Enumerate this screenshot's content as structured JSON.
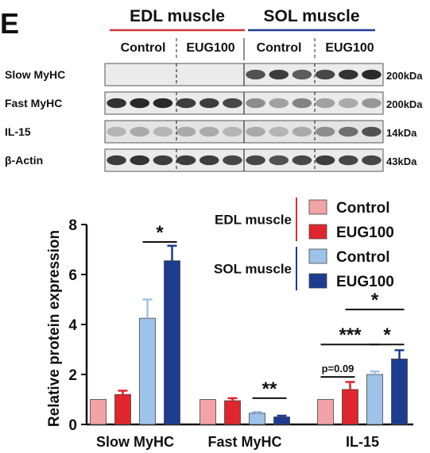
{
  "panel_label": "E",
  "blot": {
    "groups": [
      {
        "name": "EDL muscle",
        "color": "#d0343a"
      },
      {
        "name": "SOL muscle",
        "color": "#1f3a93"
      }
    ],
    "subgroups": [
      "Control",
      "EUG100",
      "Control",
      "EUG100"
    ],
    "rows": [
      {
        "protein": "Slow MyHC",
        "size": "200kDa"
      },
      {
        "protein": "Fast MyHC",
        "size": "200kDa"
      },
      {
        "protein": "IL-15",
        "size": "14kDa"
      },
      {
        "protein": "β-Actin",
        "size": "43kDa"
      }
    ]
  },
  "legend": {
    "groups": [
      {
        "label": "EDL muscle",
        "bar_color": "#d0343a",
        "items": [
          {
            "label": "Control",
            "color": "#f2a3a5"
          },
          {
            "label": "EUG100",
            "color": "#e0262c"
          }
        ]
      },
      {
        "label": "SOL muscle",
        "bar_color": "#1f3a93",
        "items": [
          {
            "label": "Control",
            "color": "#9ec3e8"
          },
          {
            "label": "EUG100",
            "color": "#1c3c8f"
          }
        ]
      }
    ]
  },
  "chart_data": {
    "type": "bar",
    "title": "",
    "xlabel": "",
    "ylabel": "Relative protein  expression",
    "ylim": [
      0,
      8
    ],
    "yticks": [
      0,
      2,
      4,
      6,
      8
    ],
    "categories": [
      "Slow MyHC",
      "Fast MyHC",
      "IL-15"
    ],
    "series": [
      {
        "color": "#f2a3a5",
        "values": [
          1.0,
          1.0,
          1.0
        ],
        "errors": [
          0,
          0,
          0
        ]
      },
      {
        "color": "#e0262c",
        "values": [
          1.2,
          0.95,
          1.4
        ],
        "errors": [
          0.15,
          0.1,
          0.3
        ]
      },
      {
        "color": "#9ec3e8",
        "values": [
          4.25,
          0.45,
          2.0
        ],
        "errors": [
          0.75,
          0.05,
          0.12
        ]
      },
      {
        "color": "#1c3c8f",
        "values": [
          6.55,
          0.3,
          2.62
        ],
        "errors": [
          0.6,
          0.05,
          0.35
        ]
      }
    ],
    "significance": [
      {
        "label": "*",
        "from": [
          0,
          2
        ],
        "to": [
          0,
          3
        ],
        "y": 7.3
      },
      {
        "label": "**",
        "from": [
          1,
          2
        ],
        "to": [
          1,
          3
        ],
        "y": 1.05
      },
      {
        "label": "p=0.09",
        "from": [
          2,
          0
        ],
        "to": [
          2,
          1
        ],
        "y": 1.9
      },
      {
        "label": "***",
        "from": [
          2,
          0
        ],
        "to": [
          2,
          2
        ],
        "y": 3.2
      },
      {
        "label": "*",
        "from": [
          2,
          2
        ],
        "to": [
          2,
          3
        ],
        "y": 3.2
      },
      {
        "label": "*",
        "from": [
          2,
          1
        ],
        "to": [
          2,
          3
        ],
        "y": 4.6
      }
    ]
  }
}
